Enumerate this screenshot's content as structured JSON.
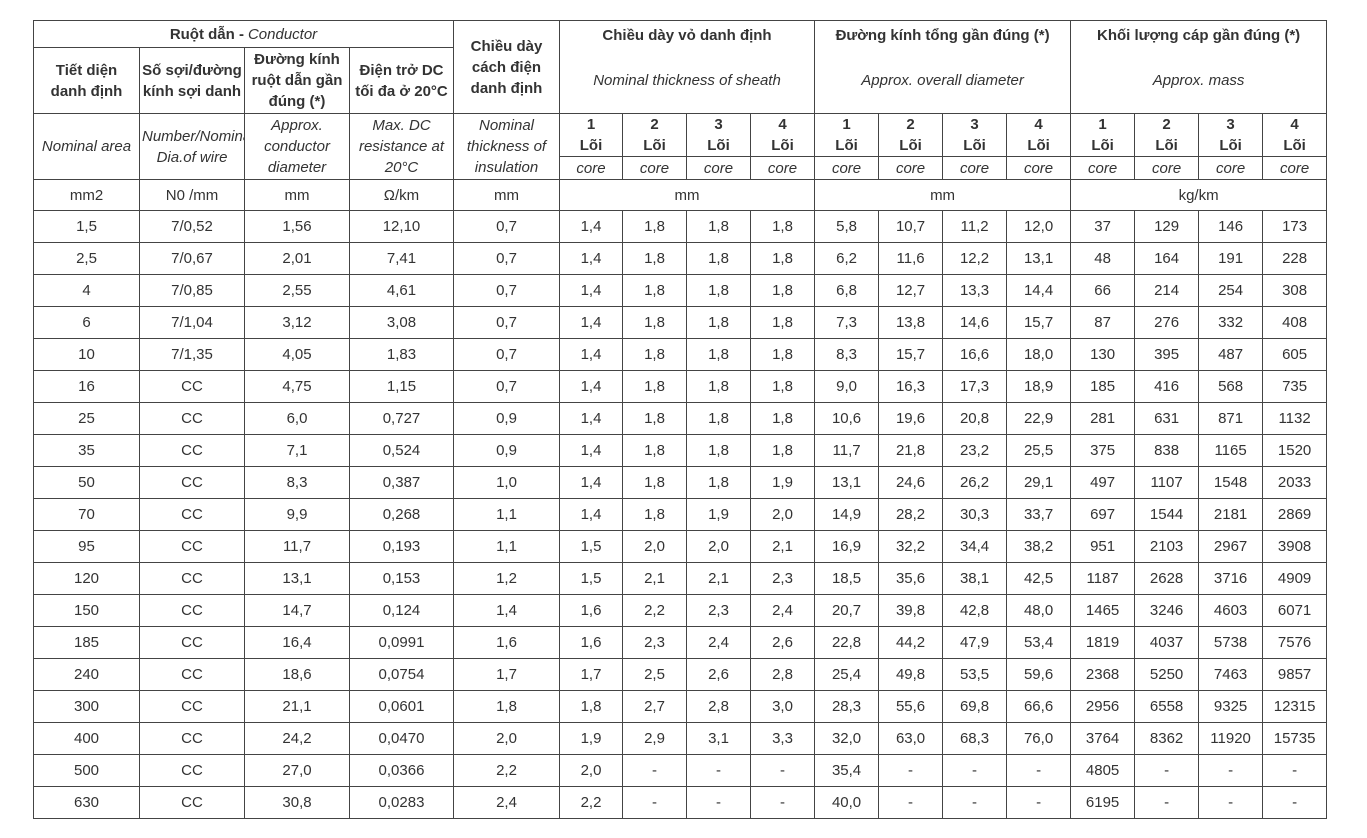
{
  "header": {
    "conductor_vi": "Ruột dẫn -",
    "conductor_en": "Conductor",
    "insulation": "Chiều dày cách điện danh định",
    "groups": [
      {
        "title": "Chiều dày vỏ danh định",
        "subtitle": "Nominal thickness of sheath"
      },
      {
        "title": "Đường kính tổng gần đúng (*)",
        "subtitle": "Approx. overall diameter"
      },
      {
        "title": "Khối lượng cáp gần đúng (*)",
        "subtitle": "Approx. mass"
      }
    ],
    "columns_vi": [
      "Tiết diện danh định",
      "Số sợi/đường kính sợi danh",
      "Đường kính ruột dẫn gần đúng (*)",
      "Điện trở DC tối đa ở 20°C"
    ],
    "columns_en": [
      "Nominal area",
      "Number/Nominal Dia.of wire",
      "Approx. conductor diameter",
      "Max. DC resistance at 20°C",
      "Nominal thickness of insulation"
    ],
    "cores": [
      {
        "number": "1",
        "word": "Lõi",
        "en": "core"
      },
      {
        "number": "2",
        "word": "Lõi",
        "en": "core"
      },
      {
        "number": "3",
        "word": "Lõi",
        "en": "core"
      },
      {
        "number": "4",
        "word": "Lõi",
        "en": "core"
      },
      {
        "number": "1",
        "word": "Lõi",
        "en": "core"
      },
      {
        "number": "2",
        "word": "Lõi",
        "en": "core"
      },
      {
        "number": "3",
        "word": "Lõi",
        "en": "core"
      },
      {
        "number": "4",
        "word": "Lõi",
        "en": "core"
      },
      {
        "number": "1",
        "word": "Lõi",
        "en": "core"
      },
      {
        "number": "2",
        "word": "Lõi",
        "en": "core"
      },
      {
        "number": "3",
        "word": "Lõi",
        "en": "core"
      },
      {
        "number": "4",
        "word": "Lõi",
        "en": "core"
      }
    ],
    "units": [
      "mm2",
      "N0 /mm",
      "mm",
      "Ω/km",
      "mm",
      "mm",
      "mm",
      "kg/km"
    ]
  },
  "table": {
    "rows": [
      [
        "1,5",
        "7/0,52",
        "1,56",
        "12,10",
        "0,7",
        "1,4",
        "1,8",
        "1,8",
        "1,8",
        "5,8",
        "10,7",
        "11,2",
        "12,0",
        "37",
        "129",
        "146",
        "173"
      ],
      [
        "2,5",
        "7/0,67",
        "2,01",
        "7,41",
        "0,7",
        "1,4",
        "1,8",
        "1,8",
        "1,8",
        "6,2",
        "11,6",
        "12,2",
        "13,1",
        "48",
        "164",
        "191",
        "228"
      ],
      [
        "4",
        "7/0,85",
        "2,55",
        "4,61",
        "0,7",
        "1,4",
        "1,8",
        "1,8",
        "1,8",
        "6,8",
        "12,7",
        "13,3",
        "14,4",
        "66",
        "214",
        "254",
        "308"
      ],
      [
        "6",
        "7/1,04",
        "3,12",
        "3,08",
        "0,7",
        "1,4",
        "1,8",
        "1,8",
        "1,8",
        "7,3",
        "13,8",
        "14,6",
        "15,7",
        "87",
        "276",
        "332",
        "408"
      ],
      [
        "10",
        "7/1,35",
        "4,05",
        "1,83",
        "0,7",
        "1,4",
        "1,8",
        "1,8",
        "1,8",
        "8,3",
        "15,7",
        "16,6",
        "18,0",
        "130",
        "395",
        "487",
        "605"
      ],
      [
        "16",
        "CC",
        "4,75",
        "1,15",
        "0,7",
        "1,4",
        "1,8",
        "1,8",
        "1,8",
        "9,0",
        "16,3",
        "17,3",
        "18,9",
        "185",
        "416",
        "568",
        "735"
      ],
      [
        "25",
        "CC",
        "6,0",
        "0,727",
        "0,9",
        "1,4",
        "1,8",
        "1,8",
        "1,8",
        "10,6",
        "19,6",
        "20,8",
        "22,9",
        "281",
        "631",
        "871",
        "1132"
      ],
      [
        "35",
        "CC",
        "7,1",
        "0,524",
        "0,9",
        "1,4",
        "1,8",
        "1,8",
        "1,8",
        "11,7",
        "21,8",
        "23,2",
        "25,5",
        "375",
        "838",
        "1165",
        "1520"
      ],
      [
        "50",
        "CC",
        "8,3",
        "0,387",
        "1,0",
        "1,4",
        "1,8",
        "1,8",
        "1,9",
        "13,1",
        "24,6",
        "26,2",
        "29,1",
        "497",
        "1107",
        "1548",
        "2033"
      ],
      [
        "70",
        "CC",
        "9,9",
        "0,268",
        "1,1",
        "1,4",
        "1,8",
        "1,9",
        "2,0",
        "14,9",
        "28,2",
        "30,3",
        "33,7",
        "697",
        "1544",
        "2181",
        "2869"
      ],
      [
        "95",
        "CC",
        "11,7",
        "0,193",
        "1,1",
        "1,5",
        "2,0",
        "2,0",
        "2,1",
        "16,9",
        "32,2",
        "34,4",
        "38,2",
        "951",
        "2103",
        "2967",
        "3908"
      ],
      [
        "120",
        "CC",
        "13,1",
        "0,153",
        "1,2",
        "1,5",
        "2,1",
        "2,1",
        "2,3",
        "18,5",
        "35,6",
        "38,1",
        "42,5",
        "1187",
        "2628",
        "3716",
        "4909"
      ],
      [
        "150",
        "CC",
        "14,7",
        "0,124",
        "1,4",
        "1,6",
        "2,2",
        "2,3",
        "2,4",
        "20,7",
        "39,8",
        "42,8",
        "48,0",
        "1465",
        "3246",
        "4603",
        "6071"
      ],
      [
        "185",
        "CC",
        "16,4",
        "0,0991",
        "1,6",
        "1,6",
        "2,3",
        "2,4",
        "2,6",
        "22,8",
        "44,2",
        "47,9",
        "53,4",
        "1819",
        "4037",
        "5738",
        "7576"
      ],
      [
        "240",
        "CC",
        "18,6",
        "0,0754",
        "1,7",
        "1,7",
        "2,5",
        "2,6",
        "2,8",
        "25,4",
        "49,8",
        "53,5",
        "59,6",
        "2368",
        "5250",
        "7463",
        "9857"
      ],
      [
        "300",
        "CC",
        "21,1",
        "0,0601",
        "1,8",
        "1,8",
        "2,7",
        "2,8",
        "3,0",
        "28,3",
        "55,6",
        "69,8",
        "66,6",
        "2956",
        "6558",
        "9325",
        "12315"
      ],
      [
        "400",
        "CC",
        "24,2",
        "0,0470",
        "2,0",
        "1,9",
        "2,9",
        "3,1",
        "3,3",
        "32,0",
        "63,0",
        "68,3",
        "76,0",
        "3764",
        "8362",
        "11920",
        "15735"
      ],
      [
        "500",
        "CC",
        "27,0",
        "0,0366",
        "2,2",
        "2,0",
        "-",
        "-",
        "-",
        "35,4",
        "-",
        "-",
        "-",
        "4805",
        "-",
        "-",
        "-"
      ],
      [
        "630",
        "CC",
        "30,8",
        "0,0283",
        "2,4",
        "2,2",
        "-",
        "-",
        "-",
        "40,0",
        "-",
        "-",
        "-",
        "6195",
        "-",
        "-",
        "-"
      ]
    ]
  }
}
